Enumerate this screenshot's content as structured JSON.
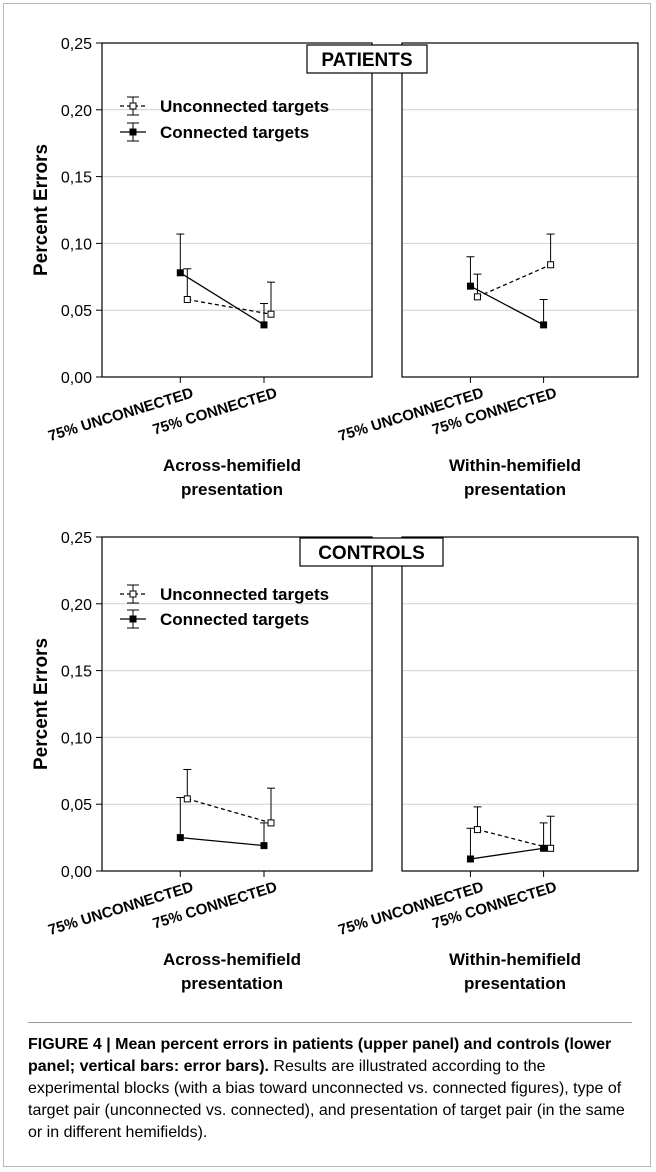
{
  "figure": {
    "caption_title": "FIGURE 4 | Mean percent errors in patients (upper panel) and controls (lower panel; vertical bars: error bars).",
    "caption_body": " Results are illustrated according to the experimental blocks (with a bias toward unconnected vs. connected figures), type of target pair (unconnected vs. connected), and presentation of target pair (in the same or in different hemifields)."
  },
  "chart_data": [
    {
      "type": "line",
      "title": "PATIENTS",
      "ylabel": "Percent Errors",
      "ylim": [
        0,
        0.25
      ],
      "yticks": [
        "0,00",
        "0,05",
        "0,10",
        "0,15",
        "0,20",
        "0,25"
      ],
      "grid": true,
      "legend_position": "top-left",
      "categories": [
        "75% UNCONNECTED",
        "75% CONNECTED"
      ],
      "panels": [
        {
          "label": "Across-hemifield presentation",
          "series": [
            {
              "name": "Unconnected targets",
              "style": "dashed",
              "marker": "open-square",
              "values": [
                0.058,
                0.047
              ],
              "error_upper": [
                0.081,
                0.071
              ]
            },
            {
              "name": "Connected targets",
              "style": "solid",
              "marker": "filled-square",
              "values": [
                0.078,
                0.039
              ],
              "error_upper": [
                0.107,
                0.055
              ]
            }
          ]
        },
        {
          "label": "Within-hemifield presentation",
          "series": [
            {
              "name": "Unconnected targets",
              "style": "dashed",
              "marker": "open-square",
              "values": [
                0.06,
                0.084
              ],
              "error_upper": [
                0.077,
                0.107
              ]
            },
            {
              "name": "Connected targets",
              "style": "solid",
              "marker": "filled-square",
              "values": [
                0.068,
                0.039
              ],
              "error_upper": [
                0.09,
                0.058
              ]
            }
          ]
        }
      ]
    },
    {
      "type": "line",
      "title": "CONTROLS",
      "ylabel": "Percent Errors",
      "ylim": [
        0,
        0.25
      ],
      "yticks": [
        "0,00",
        "0,05",
        "0,10",
        "0,15",
        "0,20",
        "0,25"
      ],
      "grid": true,
      "legend_position": "top-left",
      "categories": [
        "75% UNCONNECTED",
        "75% CONNECTED"
      ],
      "panels": [
        {
          "label": "Across-hemifield presentation",
          "series": [
            {
              "name": "Unconnected targets",
              "style": "dashed",
              "marker": "open-square",
              "values": [
                0.054,
                0.036
              ],
              "error_upper": [
                0.076,
                0.062
              ]
            },
            {
              "name": "Connected targets",
              "style": "solid",
              "marker": "filled-square",
              "values": [
                0.025,
                0.019
              ],
              "error_upper": [
                0.055,
                0.036
              ]
            }
          ]
        },
        {
          "label": "Within-hemifield presentation",
          "series": [
            {
              "name": "Unconnected targets",
              "style": "dashed",
              "marker": "open-square",
              "values": [
                0.031,
                0.017
              ],
              "error_upper": [
                0.048,
                0.041
              ]
            },
            {
              "name": "Connected targets",
              "style": "solid",
              "marker": "filled-square",
              "values": [
                0.009,
                0.017
              ],
              "error_upper": [
                0.032,
                0.036
              ]
            }
          ]
        }
      ]
    }
  ]
}
